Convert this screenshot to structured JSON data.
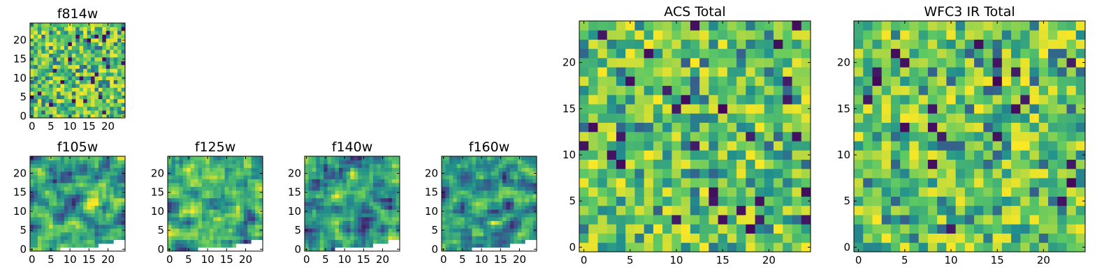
{
  "figure": {
    "panel_count": 7,
    "colormap": "viridis",
    "colors": {
      "frame": "#000000",
      "background": "#ffffff",
      "masked": "#ffffff",
      "viridis_stops": [
        "#440154",
        "#3b528b",
        "#21908d",
        "#5dc963",
        "#fde725"
      ]
    }
  },
  "chart_data": [
    {
      "id": "f814w",
      "type": "heatmap",
      "title": "f814w",
      "grid_size": [
        25,
        25
      ],
      "xlim": [
        -0.5,
        24.5
      ],
      "ylim": [
        -0.5,
        24.5
      ],
      "xticks": [
        "0",
        "5",
        "10",
        "15",
        "20"
      ],
      "yticks": [
        "0",
        "5",
        "10",
        "15",
        "20"
      ],
      "texture": "noise",
      "seed": 814,
      "masked_region": "none"
    },
    {
      "id": "f105w",
      "type": "heatmap",
      "title": "f105w",
      "grid_size": [
        25,
        25
      ],
      "xlim": [
        -0.5,
        24.5
      ],
      "ylim": [
        -0.5,
        24.5
      ],
      "xticks": [
        "0",
        "5",
        "10",
        "15",
        "20"
      ],
      "yticks": [
        "0",
        "5",
        "10",
        "15",
        "20"
      ],
      "texture": "smooth",
      "seed": 105,
      "masked_region": "bottom-right corner"
    },
    {
      "id": "f125w",
      "type": "heatmap",
      "title": "f125w",
      "grid_size": [
        25,
        25
      ],
      "xlim": [
        -0.5,
        24.5
      ],
      "ylim": [
        -0.5,
        24.5
      ],
      "xticks": [
        "0",
        "5",
        "10",
        "15",
        "20"
      ],
      "yticks": [
        "0",
        "5",
        "10",
        "15",
        "20"
      ],
      "texture": "smooth",
      "seed": 125,
      "masked_region": "bottom-right corner"
    },
    {
      "id": "f140w",
      "type": "heatmap",
      "title": "f140w",
      "grid_size": [
        25,
        25
      ],
      "xlim": [
        -0.5,
        24.5
      ],
      "ylim": [
        -0.5,
        24.5
      ],
      "xticks": [
        "0",
        "5",
        "10",
        "15",
        "20"
      ],
      "yticks": [
        "0",
        "5",
        "10",
        "15",
        "20"
      ],
      "texture": "smooth",
      "seed": 140,
      "masked_region": "bottom-right corner"
    },
    {
      "id": "f160w",
      "type": "heatmap",
      "title": "f160w",
      "grid_size": [
        25,
        25
      ],
      "xlim": [
        -0.5,
        24.5
      ],
      "ylim": [
        -0.5,
        24.5
      ],
      "xticks": [
        "0",
        "5",
        "10",
        "15",
        "20"
      ],
      "yticks": [
        "0",
        "5",
        "10",
        "15",
        "20"
      ],
      "texture": "smooth",
      "seed": 160,
      "masked_region": "bottom-right corner"
    },
    {
      "id": "acs-total",
      "type": "heatmap",
      "title": "ACS Total",
      "grid_size": [
        25,
        25
      ],
      "xlim": [
        -0.5,
        24.5
      ],
      "ylim": [
        -0.5,
        24.5
      ],
      "xticks": [
        "0",
        "5",
        "10",
        "15",
        "20"
      ],
      "yticks": [
        "0",
        "5",
        "10",
        "15",
        "20"
      ],
      "texture": "noise",
      "seed": 7,
      "masked_region": "none"
    },
    {
      "id": "wfc3-ir-total",
      "type": "heatmap",
      "title": "WFC3 IR Total",
      "grid_size": [
        25,
        25
      ],
      "xlim": [
        -0.5,
        24.5
      ],
      "ylim": [
        -0.5,
        24.5
      ],
      "xticks": [
        "0",
        "5",
        "10",
        "15",
        "20"
      ],
      "yticks": [
        "0",
        "5",
        "10",
        "15",
        "20"
      ],
      "texture": "noise",
      "seed": 31,
      "masked_region": "none"
    }
  ]
}
